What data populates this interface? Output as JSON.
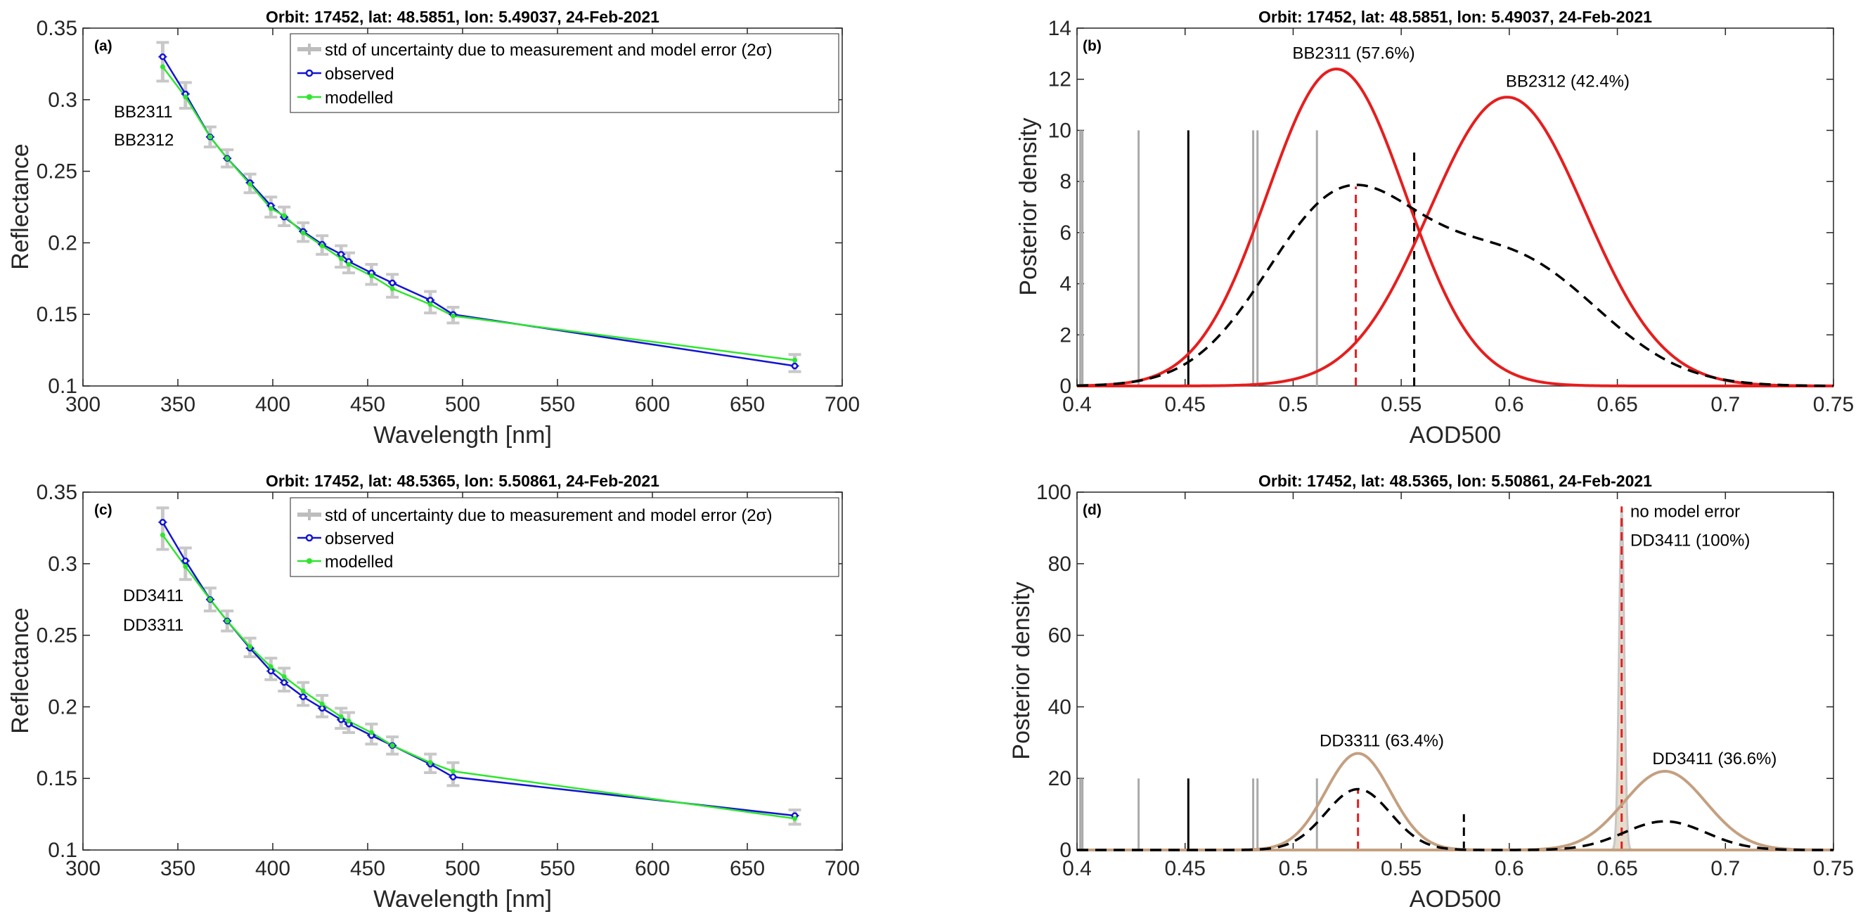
{
  "chart_data": [
    {
      "id": "a",
      "type": "line",
      "panel_label": "(a)",
      "title": "Orbit: 17452, lat: 48.5851, lon: 5.49037, 24-Feb-2021",
      "xlabel": "Wavelength [nm]",
      "ylabel": "Reflectance",
      "xlim": [
        300,
        700
      ],
      "ylim": [
        0.1,
        0.35
      ],
      "xticks": [
        300,
        350,
        400,
        450,
        500,
        550,
        600,
        650,
        700
      ],
      "yticks": [
        0.1,
        0.15,
        0.2,
        0.25,
        0.3,
        0.35
      ],
      "ytick_labels": [
        "0.1",
        "0.15",
        "0.2",
        "0.25",
        "0.3",
        "0.35"
      ],
      "legend": [
        {
          "label": "std of uncertainty due to measurement and model error (2σ)",
          "color": "#bdbdbd"
        },
        {
          "label": "observed",
          "color": "#1414d2"
        },
        {
          "label": "modelled",
          "color": "#2ee62e"
        }
      ],
      "annotations": [
        "BB2311",
        "BB2312"
      ],
      "x": [
        342,
        354,
        367,
        376,
        388,
        399,
        406,
        416,
        426,
        436,
        440,
        452,
        463,
        483,
        495,
        675
      ],
      "observed": [
        0.33,
        0.304,
        0.274,
        0.259,
        0.242,
        0.226,
        0.218,
        0.208,
        0.199,
        0.192,
        0.187,
        0.179,
        0.172,
        0.16,
        0.15,
        0.114
      ],
      "modelled": [
        0.323,
        0.302,
        0.274,
        0.259,
        0.241,
        0.224,
        0.219,
        0.207,
        0.198,
        0.189,
        0.185,
        0.177,
        0.168,
        0.157,
        0.149,
        0.118
      ],
      "error_2sigma": [
        0.01,
        0.008,
        0.007,
        0.006,
        0.006,
        0.006,
        0.006,
        0.006,
        0.006,
        0.006,
        0.006,
        0.006,
        0.006,
        0.006,
        0.005,
        0.004
      ]
    },
    {
      "id": "b",
      "type": "line",
      "panel_label": "(b)",
      "title": "Orbit: 17452, lat: 48.5851, lon: 5.49037, 24-Feb-2021",
      "xlabel": "AOD500",
      "ylabel": "Posterior density",
      "xlim": [
        0.4,
        0.75
      ],
      "ylim": [
        0,
        14
      ],
      "xticks": [
        0.4,
        0.45,
        0.5,
        0.55,
        0.6,
        0.65,
        0.7,
        0.75
      ],
      "xtick_labels": [
        "0.4",
        "0.45",
        "0.5",
        "0.55",
        "0.6",
        "0.65",
        "0.7",
        "0.75"
      ],
      "yticks": [
        0,
        2,
        4,
        6,
        8,
        10,
        12,
        14
      ],
      "series": [
        {
          "name": "BB2311 (57.6%)",
          "color": "#e61e1e",
          "dash": false,
          "mean": 0.52,
          "sd": 0.032,
          "peak": 12.4
        },
        {
          "name": "BB2312 (42.4%)",
          "color": "#e61e1e",
          "dash": false,
          "mean": 0.599,
          "sd": 0.036,
          "peak": 11.3
        },
        {
          "name": "posterior mixture",
          "color": "#000000",
          "dash": true,
          "components": [
            {
              "mean": 0.522,
              "sd": 0.035,
              "peak": 7.1
            },
            {
              "mean": 0.602,
              "sd": 0.04,
              "peak": 4.8
            }
          ]
        }
      ],
      "vlines": [
        {
          "x": 0.4015,
          "y0": 0,
          "y1": 10,
          "color": "#aaaaaa",
          "dash": false
        },
        {
          "x": 0.4025,
          "y0": 0,
          "y1": 10,
          "color": "#aaaaaa",
          "dash": false
        },
        {
          "x": 0.4285,
          "y0": 0,
          "y1": 10,
          "color": "#aaaaaa",
          "dash": false
        },
        {
          "x": 0.4815,
          "y0": 0,
          "y1": 10,
          "color": "#aaaaaa",
          "dash": false
        },
        {
          "x": 0.4835,
          "y0": 0,
          "y1": 10,
          "color": "#aaaaaa",
          "dash": false
        },
        {
          "x": 0.511,
          "y0": 0,
          "y1": 10,
          "color": "#aaaaaa",
          "dash": false
        },
        {
          "x": 0.4515,
          "y0": 0,
          "y1": 10,
          "color": "#000000",
          "dash": false
        },
        {
          "x": 0.529,
          "y0": 0,
          "y1": 7.8,
          "color": "#e61e1e",
          "dash": true
        },
        {
          "x": 0.556,
          "y0": 0,
          "y1": 9.3,
          "color": "#000000",
          "dash": true
        }
      ],
      "annotations": [
        {
          "text": "BB2311 (57.6%)",
          "x": 0.528,
          "y": 12.8
        },
        {
          "text": "BB2312 (42.4%)",
          "x": 0.627,
          "y": 11.7
        }
      ]
    },
    {
      "id": "c",
      "type": "line",
      "panel_label": "(c)",
      "title": "Orbit: 17452, lat: 48.5365, lon: 5.50861, 24-Feb-2021",
      "xlabel": "Wavelength [nm]",
      "ylabel": "Reflectance",
      "xlim": [
        300,
        700
      ],
      "ylim": [
        0.1,
        0.35
      ],
      "xticks": [
        300,
        350,
        400,
        450,
        500,
        550,
        600,
        650,
        700
      ],
      "yticks": [
        0.1,
        0.15,
        0.2,
        0.25,
        0.3,
        0.35
      ],
      "ytick_labels": [
        "0.1",
        "0.15",
        "0.2",
        "0.25",
        "0.3",
        "0.35"
      ],
      "legend": [
        {
          "label": "std of uncertainty due to measurement and model error (2σ)",
          "color": "#bdbdbd"
        },
        {
          "label": "observed",
          "color": "#1414d2"
        },
        {
          "label": "modelled",
          "color": "#2ee62e"
        }
      ],
      "annotations": [
        "DD3411",
        "DD3311"
      ],
      "x": [
        342,
        354,
        367,
        376,
        388,
        399,
        406,
        416,
        426,
        436,
        440,
        452,
        463,
        483,
        495,
        675
      ],
      "observed": [
        0.329,
        0.302,
        0.275,
        0.26,
        0.241,
        0.225,
        0.217,
        0.207,
        0.199,
        0.191,
        0.188,
        0.18,
        0.173,
        0.16,
        0.151,
        0.124
      ],
      "modelled": [
        0.32,
        0.298,
        0.275,
        0.26,
        0.242,
        0.228,
        0.221,
        0.211,
        0.202,
        0.193,
        0.19,
        0.182,
        0.173,
        0.161,
        0.155,
        0.122
      ],
      "error_2sigma": [
        0.01,
        0.009,
        0.008,
        0.007,
        0.006,
        0.006,
        0.006,
        0.006,
        0.006,
        0.006,
        0.006,
        0.006,
        0.006,
        0.006,
        0.006,
        0.004
      ]
    },
    {
      "id": "d",
      "type": "line",
      "panel_label": "(d)",
      "title": "Orbit: 17452, lat: 48.5365, lon: 5.50861, 24-Feb-2021",
      "xlabel": "AOD500",
      "ylabel": "Posterior density",
      "xlim": [
        0.4,
        0.75
      ],
      "ylim": [
        0,
        100
      ],
      "xticks": [
        0.4,
        0.45,
        0.5,
        0.55,
        0.6,
        0.65,
        0.7,
        0.75
      ],
      "xtick_labels": [
        "0.4",
        "0.45",
        "0.5",
        "0.55",
        "0.6",
        "0.65",
        "0.7",
        "0.75"
      ],
      "yticks": [
        0,
        20,
        40,
        60,
        80,
        100
      ],
      "series": [
        {
          "name": "DD3311 (63.4%)",
          "color": "#c4a080",
          "dash": false,
          "mean": 0.53,
          "sd": 0.015,
          "peak": 27
        },
        {
          "name": "DD3411 (36.6%)",
          "color": "#c4a080",
          "dash": false,
          "mean": 0.672,
          "sd": 0.019,
          "peak": 22
        },
        {
          "name": "posterior mixture",
          "color": "#000000",
          "dash": true,
          "components": [
            {
              "mean": 0.53,
              "sd": 0.015,
              "peak": 17
            },
            {
              "mean": 0.672,
              "sd": 0.019,
              "peak": 8
            }
          ]
        }
      ],
      "spike": {
        "name": "no model error DD3411 (100%)",
        "mean": 0.652,
        "sd": 0.0012,
        "peak": 95,
        "color": "#c8c8c8",
        "fill": "#e6dccc"
      },
      "vlines": [
        {
          "x": 0.4015,
          "y0": 0,
          "y1": 20,
          "color": "#aaaaaa",
          "dash": false
        },
        {
          "x": 0.4025,
          "y0": 0,
          "y1": 20,
          "color": "#aaaaaa",
          "dash": false
        },
        {
          "x": 0.4285,
          "y0": 0,
          "y1": 20,
          "color": "#aaaaaa",
          "dash": false
        },
        {
          "x": 0.4815,
          "y0": 0,
          "y1": 20,
          "color": "#aaaaaa",
          "dash": false
        },
        {
          "x": 0.4835,
          "y0": 0,
          "y1": 20,
          "color": "#aaaaaa",
          "dash": false
        },
        {
          "x": 0.511,
          "y0": 0,
          "y1": 20,
          "color": "#aaaaaa",
          "dash": false
        },
        {
          "x": 0.4515,
          "y0": 0,
          "y1": 20,
          "color": "#000000",
          "dash": false
        },
        {
          "x": 0.53,
          "y0": 0,
          "y1": 17,
          "color": "#e61e1e",
          "dash": true
        },
        {
          "x": 0.652,
          "y0": 0,
          "y1": 96,
          "color": "#e61e1e",
          "dash": true
        },
        {
          "x": 0.579,
          "y0": 0,
          "y1": 10,
          "color": "#000000",
          "dash": true
        }
      ],
      "annotations": [
        {
          "text": "no model error",
          "x": 0.656,
          "y": 93
        },
        {
          "text": "DD3411 (100%)",
          "x": 0.656,
          "y": 85
        },
        {
          "text": "DD3311 (63.4%)",
          "x": 0.541,
          "y": 29
        },
        {
          "text": "DD3411 (36.6%)",
          "x": 0.695,
          "y": 24
        }
      ]
    }
  ]
}
